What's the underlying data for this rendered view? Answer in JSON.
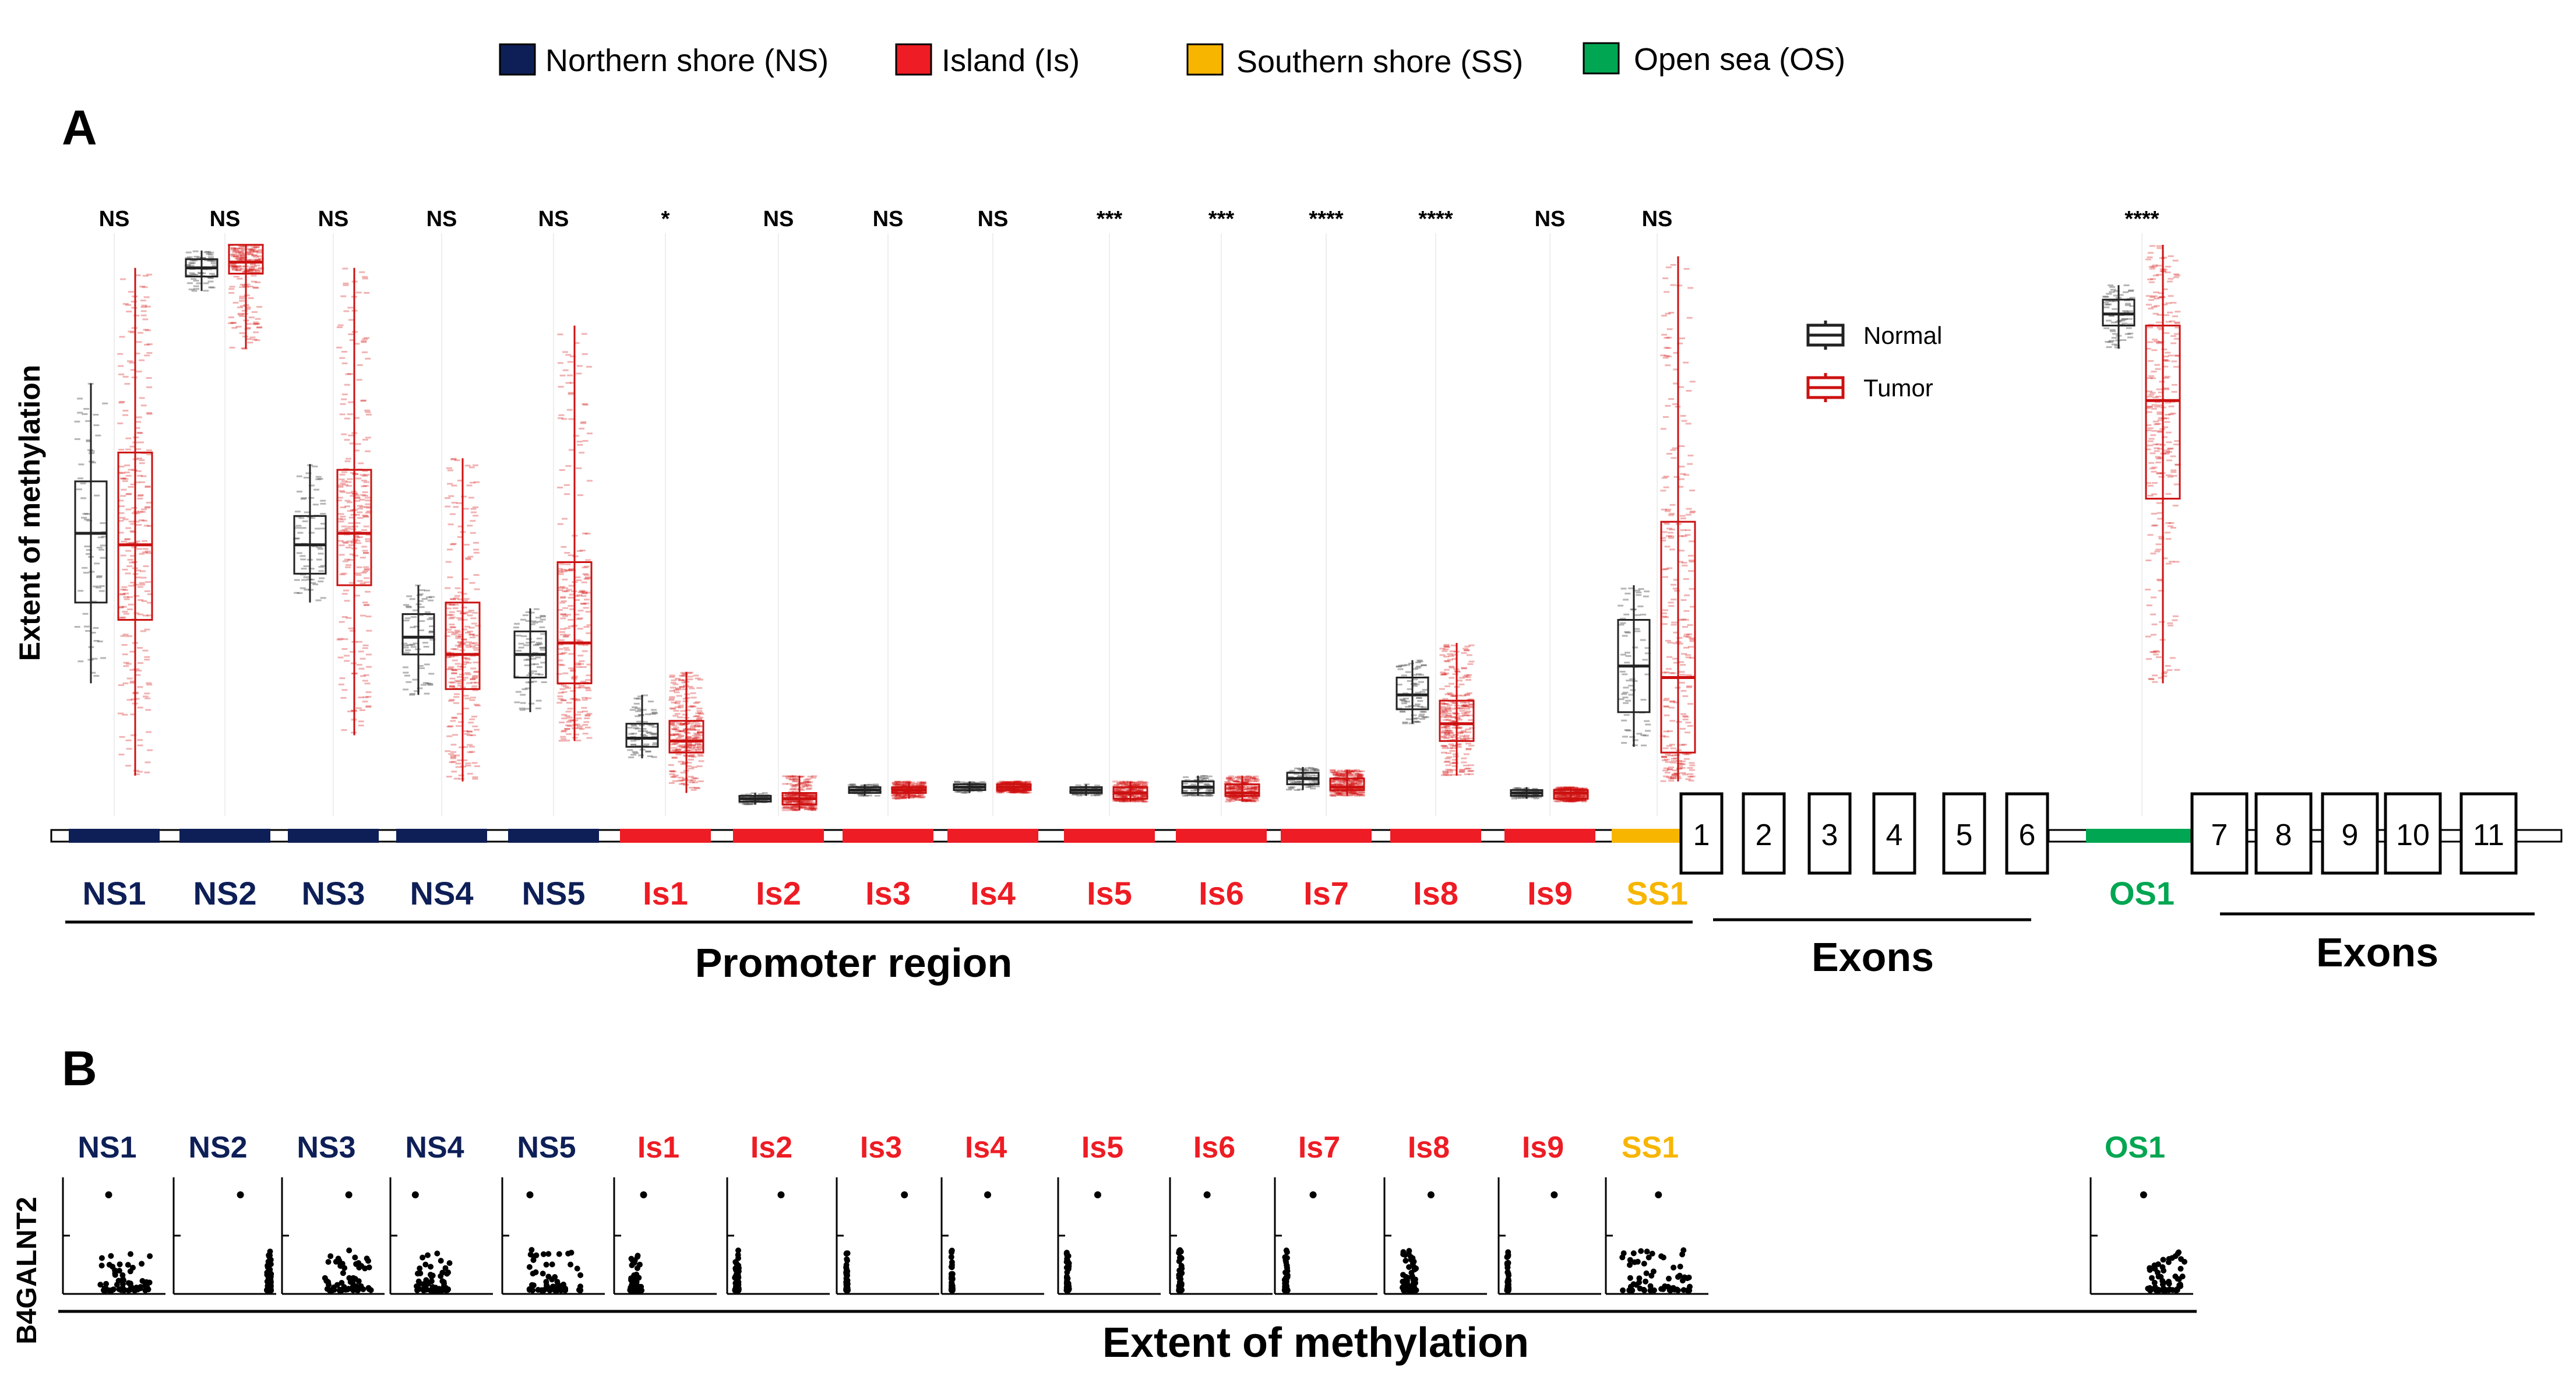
{
  "legend_top": [
    {
      "label": "Northern shore (NS)",
      "color": "#0e1f57"
    },
    {
      "label": "Island (Is)",
      "color": "#ee1c24"
    },
    {
      "label": "Southern shore (SS)",
      "color": "#f7b500"
    },
    {
      "label": "Open sea (OS)",
      "color": "#00a651"
    }
  ],
  "panel_a": {
    "letter": "A",
    "ylabel": "Extent of methylation",
    "legend": [
      {
        "label": "Normal",
        "color": "#222222"
      },
      {
        "label": "Tumor",
        "color": "#cc1111"
      }
    ],
    "promoter_label": "Promoter region",
    "exons_label_1": "Exons",
    "exons_label_2": "Exons",
    "exons_1": [
      "1",
      "2",
      "3",
      "4",
      "5",
      "6"
    ],
    "exons_2": [
      "7",
      "8",
      "9",
      "10",
      "11"
    ]
  },
  "panel_b": {
    "letter": "B",
    "ylabel": "B4GALNT2",
    "xlabel": "Extent of methylation"
  },
  "chart_data": {
    "type": "box",
    "title": "",
    "ylabel": "Extent of methylation",
    "ylim": [
      0,
      1
    ],
    "region_colors": {
      "NS": "#0e1f57",
      "Is": "#ee1c24",
      "SS": "#f7b500",
      "OS": "#00a651"
    },
    "series": [
      {
        "name": "Normal",
        "color": "#222222"
      },
      {
        "name": "Tumor",
        "color": "#cc1111"
      }
    ],
    "categories": [
      {
        "label": "NS1",
        "region": "NS",
        "sig": "NS",
        "normal": {
          "min": 0.24,
          "q1": 0.38,
          "median": 0.5,
          "q3": 0.59,
          "max": 0.76
        },
        "tumor": {
          "min": 0.08,
          "q1": 0.35,
          "median": 0.48,
          "q3": 0.64,
          "max": 0.96
        }
      },
      {
        "label": "NS2",
        "region": "NS",
        "sig": "NS",
        "normal": {
          "min": 0.92,
          "q1": 0.945,
          "median": 0.96,
          "q3": 0.975,
          "max": 0.99
        },
        "tumor": {
          "min": 0.82,
          "q1": 0.95,
          "median": 0.97,
          "q3": 1.0,
          "max": 1.0
        }
      },
      {
        "label": "NS3",
        "region": "NS",
        "sig": "NS",
        "normal": {
          "min": 0.38,
          "q1": 0.43,
          "median": 0.48,
          "q3": 0.53,
          "max": 0.62
        },
        "tumor": {
          "min": 0.15,
          "q1": 0.41,
          "median": 0.5,
          "q3": 0.61,
          "max": 0.96
        }
      },
      {
        "label": "NS4",
        "region": "NS",
        "sig": "NS",
        "normal": {
          "min": 0.22,
          "q1": 0.29,
          "median": 0.32,
          "q3": 0.36,
          "max": 0.41
        },
        "tumor": {
          "min": 0.07,
          "q1": 0.23,
          "median": 0.29,
          "q3": 0.38,
          "max": 0.63
        }
      },
      {
        "label": "NS5",
        "region": "NS",
        "sig": "NS",
        "normal": {
          "min": 0.19,
          "q1": 0.25,
          "median": 0.29,
          "q3": 0.33,
          "max": 0.37
        },
        "tumor": {
          "min": 0.14,
          "q1": 0.24,
          "median": 0.31,
          "q3": 0.45,
          "max": 0.86
        }
      },
      {
        "label": "Is1",
        "region": "Is",
        "sig": "*",
        "normal": {
          "min": 0.11,
          "q1": 0.13,
          "median": 0.145,
          "q3": 0.17,
          "max": 0.22
        },
        "tumor": {
          "min": 0.05,
          "q1": 0.12,
          "median": 0.14,
          "q3": 0.175,
          "max": 0.26
        }
      },
      {
        "label": "Is2",
        "region": "Is",
        "sig": "NS",
        "normal": {
          "min": 0.03,
          "q1": 0.035,
          "median": 0.04,
          "q3": 0.045,
          "max": 0.05
        },
        "tumor": {
          "min": 0.02,
          "q1": 0.03,
          "median": 0.04,
          "q3": 0.05,
          "max": 0.08
        }
      },
      {
        "label": "Is3",
        "region": "Is",
        "sig": "NS",
        "normal": {
          "min": 0.045,
          "q1": 0.05,
          "median": 0.055,
          "q3": 0.06,
          "max": 0.065
        },
        "tumor": {
          "min": 0.04,
          "q1": 0.05,
          "median": 0.055,
          "q3": 0.06,
          "max": 0.07
        }
      },
      {
        "label": "Is4",
        "region": "Is",
        "sig": "NS",
        "normal": {
          "min": 0.05,
          "q1": 0.055,
          "median": 0.06,
          "q3": 0.065,
          "max": 0.07
        },
        "tumor": {
          "min": 0.05,
          "q1": 0.055,
          "median": 0.06,
          "q3": 0.065,
          "max": 0.07
        }
      },
      {
        "label": "Is5",
        "region": "Is",
        "sig": "***",
        "normal": {
          "min": 0.045,
          "q1": 0.05,
          "median": 0.055,
          "q3": 0.06,
          "max": 0.065
        },
        "tumor": {
          "min": 0.035,
          "q1": 0.04,
          "median": 0.05,
          "q3": 0.06,
          "max": 0.07
        }
      },
      {
        "label": "Is6",
        "region": "Is",
        "sig": "***",
        "normal": {
          "min": 0.045,
          "q1": 0.05,
          "median": 0.06,
          "q3": 0.07,
          "max": 0.08
        },
        "tumor": {
          "min": 0.035,
          "q1": 0.045,
          "median": 0.05,
          "q3": 0.065,
          "max": 0.08
        }
      },
      {
        "label": "Is7",
        "region": "Is",
        "sig": "****",
        "normal": {
          "min": 0.055,
          "q1": 0.065,
          "median": 0.075,
          "q3": 0.085,
          "max": 0.095
        },
        "tumor": {
          "min": 0.045,
          "q1": 0.055,
          "median": 0.06,
          "q3": 0.075,
          "max": 0.09
        }
      },
      {
        "label": "Is8",
        "region": "Is",
        "sig": "****",
        "normal": {
          "min": 0.17,
          "q1": 0.195,
          "median": 0.22,
          "q3": 0.25,
          "max": 0.28
        },
        "tumor": {
          "min": 0.08,
          "q1": 0.14,
          "median": 0.17,
          "q3": 0.21,
          "max": 0.31
        }
      },
      {
        "label": "Is9",
        "region": "Is",
        "sig": "NS",
        "normal": {
          "min": 0.04,
          "q1": 0.045,
          "median": 0.05,
          "q3": 0.055,
          "max": 0.06
        },
        "tumor": {
          "min": 0.035,
          "q1": 0.04,
          "median": 0.05,
          "q3": 0.055,
          "max": 0.06
        }
      },
      {
        "label": "SS1",
        "region": "SS",
        "sig": "NS",
        "normal": {
          "min": 0.13,
          "q1": 0.19,
          "median": 0.27,
          "q3": 0.35,
          "max": 0.41
        },
        "tumor": {
          "min": 0.07,
          "q1": 0.12,
          "median": 0.25,
          "q3": 0.52,
          "max": 0.98
        }
      },
      {
        "label": "OS1",
        "region": "OS",
        "sig": "****",
        "normal": {
          "min": 0.82,
          "q1": 0.86,
          "median": 0.88,
          "q3": 0.905,
          "max": 0.93
        },
        "tumor": {
          "min": 0.24,
          "q1": 0.56,
          "median": 0.73,
          "q3": 0.86,
          "max": 1.0
        }
      }
    ]
  }
}
